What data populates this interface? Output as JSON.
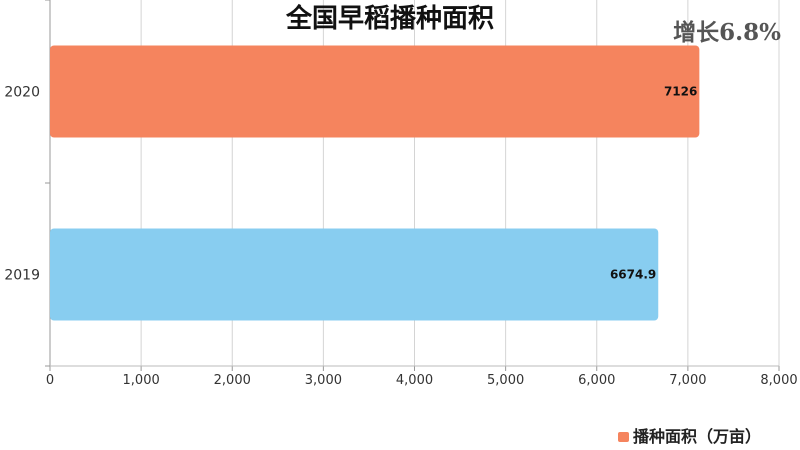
{
  "chart_data": {
    "type": "bar",
    "orientation": "horizontal",
    "title": "全国早稻播种面积",
    "annotation": "增长6.8%",
    "categories": [
      "2020",
      "2019"
    ],
    "series": [
      {
        "name": "播种面积（万亩）",
        "values": [
          7126,
          6674.9
        ],
        "value_labels": [
          "7126",
          "6674.9"
        ],
        "colors": [
          "#f5845e",
          "#88cdf0"
        ]
      }
    ],
    "xlim": [
      0,
      8000
    ],
    "x_ticks": [
      0,
      1000,
      2000,
      3000,
      4000,
      5000,
      6000,
      7000,
      8000
    ],
    "x_tick_labels": [
      "0",
      "1,000",
      "2,000",
      "3,000",
      "4,000",
      "5,000",
      "6,000",
      "7,000",
      "8,000"
    ],
    "grid": true,
    "legend_position": "bottom-right",
    "legend_color": "#f5845e"
  }
}
